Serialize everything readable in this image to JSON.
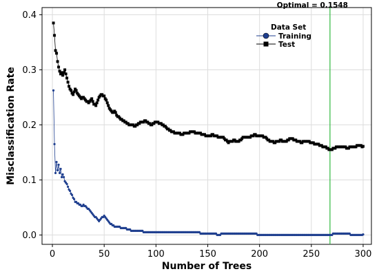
{
  "chart_data": {
    "type": "line",
    "xlabel": "Number of Trees",
    "ylabel": "Misclassification Rate",
    "xlim": [
      -10,
      308
    ],
    "ylim": [
      -0.017,
      0.413
    ],
    "xticks": [
      0,
      50,
      100,
      150,
      200,
      250,
      300
    ],
    "yticks": [
      0.0,
      0.1,
      0.2,
      0.3,
      0.4
    ],
    "xtick_labels": [
      "0",
      "50",
      "100",
      "150",
      "200",
      "250",
      "300"
    ],
    "ytick_labels": [
      "0.0",
      "0.1",
      "0.2",
      "0.3",
      "0.4"
    ],
    "grid": true,
    "legend": {
      "title": "Data Set",
      "placement": "top-right",
      "entries": [
        "Training",
        "Test"
      ]
    },
    "reference_line": {
      "x": 268,
      "label": "Optimal = 0.1548",
      "color": "#2db83d"
    },
    "series": [
      {
        "name": "Training",
        "marker": "circle",
        "color": "#1f3f8f",
        "anchors": [
          [
            1,
            0.262
          ],
          [
            2,
            0.165
          ],
          [
            3,
            0.112
          ],
          [
            4,
            0.133
          ],
          [
            5,
            0.118
          ],
          [
            6,
            0.127
          ],
          [
            7,
            0.113
          ],
          [
            8,
            0.12
          ],
          [
            9,
            0.105
          ],
          [
            10,
            0.11
          ],
          [
            12,
            0.098
          ],
          [
            15,
            0.088
          ],
          [
            18,
            0.075
          ],
          [
            20,
            0.068
          ],
          [
            22,
            0.06
          ],
          [
            25,
            0.058
          ],
          [
            28,
            0.052
          ],
          [
            30,
            0.055
          ],
          [
            33,
            0.05
          ],
          [
            36,
            0.045
          ],
          [
            38,
            0.04
          ],
          [
            40,
            0.035
          ],
          [
            43,
            0.03
          ],
          [
            45,
            0.024
          ],
          [
            48,
            0.032
          ],
          [
            50,
            0.035
          ],
          [
            52,
            0.03
          ],
          [
            55,
            0.022
          ],
          [
            60,
            0.016
          ],
          [
            65,
            0.014
          ],
          [
            70,
            0.012
          ],
          [
            75,
            0.009
          ],
          [
            80,
            0.007
          ],
          [
            90,
            0.006
          ],
          [
            100,
            0.006
          ],
          [
            120,
            0.005
          ],
          [
            140,
            0.004
          ],
          [
            150,
            0.003
          ],
          [
            160,
            0.001
          ],
          [
            170,
            0.002
          ],
          [
            180,
            0.003
          ],
          [
            200,
            0.001
          ],
          [
            220,
            0.001
          ],
          [
            240,
            0.0
          ],
          [
            260,
            0.0
          ],
          [
            268,
            0.001
          ],
          [
            280,
            0.002
          ],
          [
            290,
            0.001
          ],
          [
            300,
            0.001
          ]
        ]
      },
      {
        "name": "Test",
        "marker": "square",
        "color": "#000000",
        "anchors": [
          [
            1,
            0.384
          ],
          [
            2,
            0.362
          ],
          [
            3,
            0.335
          ],
          [
            4,
            0.33
          ],
          [
            5,
            0.315
          ],
          [
            6,
            0.305
          ],
          [
            7,
            0.298
          ],
          [
            8,
            0.292
          ],
          [
            9,
            0.296
          ],
          [
            10,
            0.29
          ],
          [
            12,
            0.3
          ],
          [
            14,
            0.285
          ],
          [
            16,
            0.27
          ],
          [
            18,
            0.262
          ],
          [
            20,
            0.255
          ],
          [
            22,
            0.265
          ],
          [
            24,
            0.258
          ],
          [
            26,
            0.252
          ],
          [
            28,
            0.248
          ],
          [
            30,
            0.25
          ],
          [
            32,
            0.245
          ],
          [
            35,
            0.24
          ],
          [
            38,
            0.248
          ],
          [
            40,
            0.238
          ],
          [
            42,
            0.235
          ],
          [
            45,
            0.25
          ],
          [
            47,
            0.255
          ],
          [
            50,
            0.252
          ],
          [
            52,
            0.245
          ],
          [
            55,
            0.23
          ],
          [
            58,
            0.222
          ],
          [
            60,
            0.225
          ],
          [
            62,
            0.218
          ],
          [
            65,
            0.212
          ],
          [
            68,
            0.208
          ],
          [
            70,
            0.205
          ],
          [
            75,
            0.2
          ],
          [
            80,
            0.198
          ],
          [
            85,
            0.205
          ],
          [
            90,
            0.207
          ],
          [
            95,
            0.2
          ],
          [
            100,
            0.205
          ],
          [
            105,
            0.202
          ],
          [
            110,
            0.195
          ],
          [
            115,
            0.188
          ],
          [
            120,
            0.185
          ],
          [
            125,
            0.183
          ],
          [
            130,
            0.185
          ],
          [
            135,
            0.188
          ],
          [
            140,
            0.185
          ],
          [
            145,
            0.183
          ],
          [
            150,
            0.18
          ],
          [
            155,
            0.182
          ],
          [
            160,
            0.178
          ],
          [
            165,
            0.177
          ],
          [
            170,
            0.168
          ],
          [
            175,
            0.172
          ],
          [
            180,
            0.17
          ],
          [
            185,
            0.178
          ],
          [
            190,
            0.177
          ],
          [
            195,
            0.182
          ],
          [
            200,
            0.18
          ],
          [
            205,
            0.178
          ],
          [
            210,
            0.17
          ],
          [
            215,
            0.168
          ],
          [
            220,
            0.172
          ],
          [
            225,
            0.17
          ],
          [
            230,
            0.175
          ],
          [
            235,
            0.172
          ],
          [
            240,
            0.168
          ],
          [
            245,
            0.17
          ],
          [
            250,
            0.168
          ],
          [
            255,
            0.165
          ],
          [
            260,
            0.162
          ],
          [
            265,
            0.158
          ],
          [
            268,
            0.155
          ],
          [
            270,
            0.156
          ],
          [
            275,
            0.16
          ],
          [
            280,
            0.16
          ],
          [
            285,
            0.158
          ],
          [
            290,
            0.16
          ],
          [
            295,
            0.162
          ],
          [
            300,
            0.161
          ]
        ]
      }
    ]
  }
}
